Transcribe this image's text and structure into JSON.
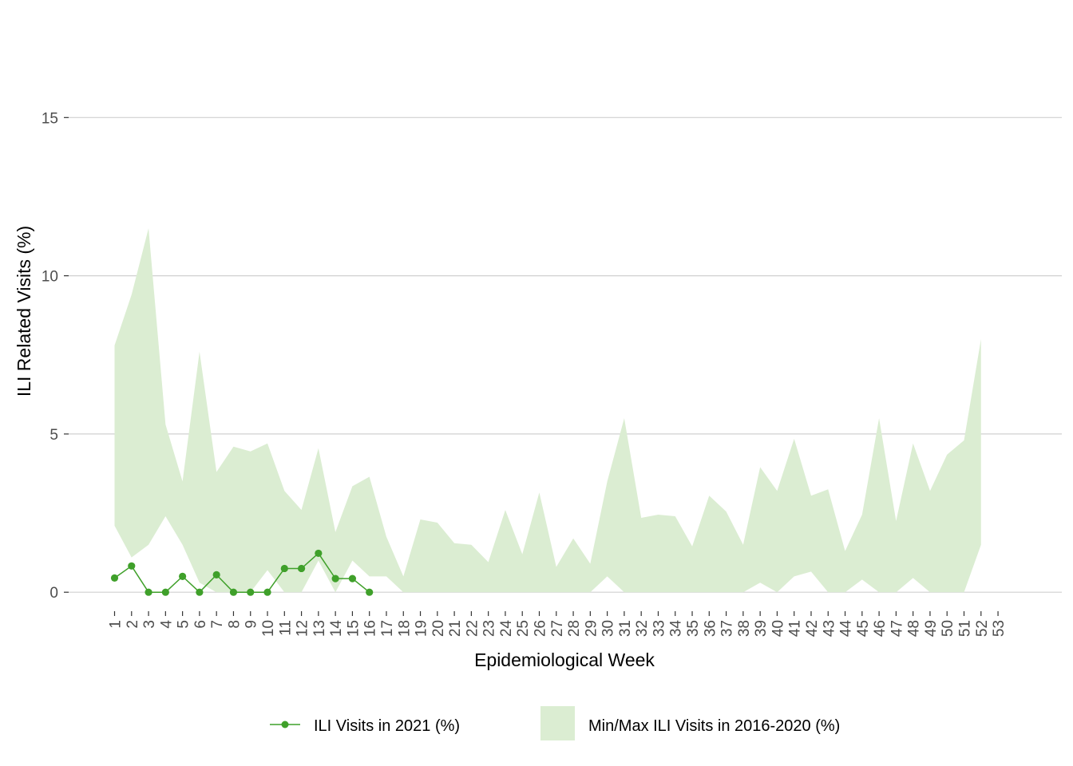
{
  "chart_data": {
    "type": "area",
    "xlabel": "Epidemiological Week",
    "ylabel": "ILI Related Visits (%)",
    "ylim": [
      -0.6,
      17
    ],
    "yticks": [
      0,
      5,
      10,
      15
    ],
    "grid": "horizontal major lines",
    "legend_position": "bottom",
    "x": [
      1,
      2,
      3,
      4,
      5,
      6,
      7,
      8,
      9,
      10,
      11,
      12,
      13,
      14,
      15,
      16,
      17,
      18,
      19,
      20,
      21,
      22,
      23,
      24,
      25,
      26,
      27,
      28,
      29,
      30,
      31,
      32,
      33,
      34,
      35,
      36,
      37,
      38,
      39,
      40,
      41,
      42,
      43,
      44,
      45,
      46,
      47,
      48,
      49,
      50,
      51,
      52,
      53
    ],
    "series": [
      {
        "name": "ILI Visits in 2021 (%)",
        "kind": "line-points",
        "color": "#3fa02a",
        "x": [
          1,
          2,
          3,
          4,
          5,
          6,
          7,
          8,
          9,
          10,
          11,
          12,
          13,
          14,
          15,
          16
        ],
        "values": [
          0.45,
          0.83,
          0.0,
          0.0,
          0.5,
          0.0,
          0.55,
          0.0,
          0.0,
          0.0,
          0.75,
          0.75,
          1.23,
          0.43,
          0.43,
          0.0
        ]
      },
      {
        "name": "Min/Max ILI Visits in 2016-2020 (%)",
        "kind": "ribbon",
        "color": "#dbedd2",
        "x": [
          1,
          2,
          3,
          4,
          5,
          6,
          7,
          8,
          9,
          10,
          11,
          12,
          13,
          14,
          15,
          16,
          17,
          18,
          19,
          20,
          21,
          22,
          23,
          24,
          25,
          26,
          27,
          28,
          29,
          30,
          31,
          32,
          33,
          34,
          35,
          36,
          37,
          38,
          39,
          40,
          41,
          42,
          43,
          44,
          45,
          46,
          47,
          48,
          49,
          50,
          51,
          52
        ],
        "min": [
          2.1,
          1.1,
          1.5,
          2.4,
          1.5,
          0.3,
          0.0,
          0.0,
          0.0,
          0.7,
          0.0,
          0.0,
          1.0,
          0.0,
          1.0,
          0.5,
          0.5,
          0.0,
          0.0,
          0.0,
          0.0,
          0.0,
          0.0,
          0.0,
          0.0,
          0.0,
          0.0,
          0.0,
          0.0,
          0.5,
          0.0,
          0.0,
          0.0,
          0.0,
          0.0,
          0.0,
          0.0,
          0.0,
          0.3,
          0.0,
          0.5,
          0.65,
          0.0,
          0.0,
          0.4,
          0.0,
          0.0,
          0.45,
          0.0,
          0.0,
          0.0,
          1.5
        ],
        "max": [
          7.8,
          9.4,
          11.5,
          5.3,
          3.5,
          7.6,
          3.8,
          4.6,
          4.45,
          4.7,
          3.2,
          2.6,
          4.55,
          1.9,
          3.35,
          3.65,
          1.75,
          0.5,
          2.3,
          2.2,
          1.55,
          1.5,
          0.95,
          2.6,
          1.2,
          3.15,
          0.8,
          1.7,
          0.9,
          3.5,
          5.5,
          2.35,
          2.45,
          2.4,
          1.45,
          3.05,
          2.55,
          1.5,
          3.95,
          3.2,
          4.85,
          3.05,
          3.25,
          1.3,
          2.45,
          5.5,
          2.25,
          4.7,
          3.2,
          4.35,
          4.8,
          8.0
        ]
      }
    ]
  }
}
